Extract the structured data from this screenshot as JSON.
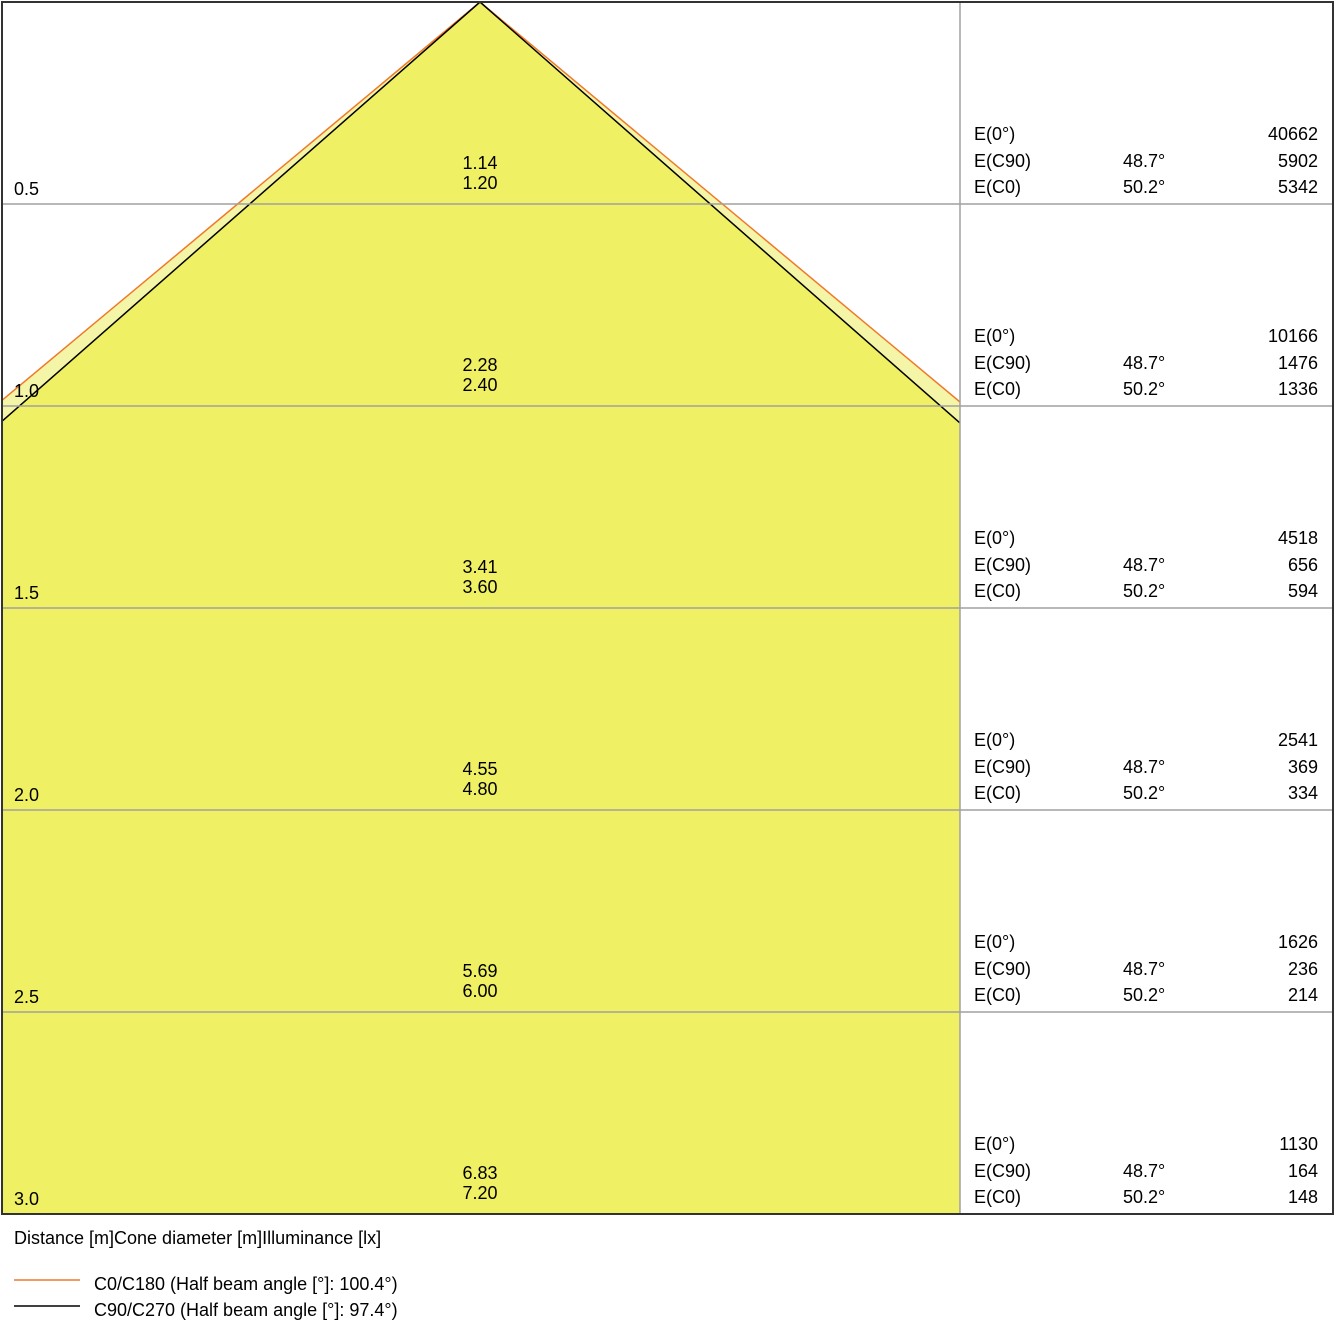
{
  "chart_data": {
    "type": "cone-diagram",
    "header_label": "Distance [m]Cone diameter [m]Illuminance [lx]",
    "rows": [
      {
        "distance": "0.5",
        "d1": "1.14",
        "d2": "1.20",
        "e0": "40662",
        "ec90": "5902",
        "ec0": "5342"
      },
      {
        "distance": "1.0",
        "d1": "2.28",
        "d2": "2.40",
        "e0": "10166",
        "ec90": "1476",
        "ec0": "1336"
      },
      {
        "distance": "1.5",
        "d1": "3.41",
        "d2": "3.60",
        "e0": "4518",
        "ec90": "656",
        "ec0": "594"
      },
      {
        "distance": "2.0",
        "d1": "4.55",
        "d2": "4.80",
        "e0": "2541",
        "ec90": "369",
        "ec0": "334"
      },
      {
        "distance": "2.5",
        "d1": "5.69",
        "d2": "6.00",
        "e0": "1626",
        "ec90": "236",
        "ec0": "214"
      },
      {
        "distance": "3.0",
        "d1": "6.83",
        "d2": "7.20",
        "e0": "1130",
        "ec90": "164",
        "ec0": "148"
      }
    ],
    "labels": {
      "e0": "E(0°)",
      "ec90": "E(C90)",
      "ec0": "E(C0)",
      "angle_c90": "48.7°",
      "angle_c0": "50.2°"
    },
    "legend": [
      {
        "name": "C0/C180 (Half beam angle [°]: 100.4°)",
        "color": "#f07828",
        "half_width_per_m": 1.2
      },
      {
        "name": "C90/C270 (Half beam angle [°]: 97.4°)",
        "color": "#000000",
        "half_width_per_m": 1.14
      }
    ],
    "colors": {
      "fill": "#f0f064",
      "fill_light": "#f5f5a8",
      "grid": "#a0a0a0"
    }
  }
}
